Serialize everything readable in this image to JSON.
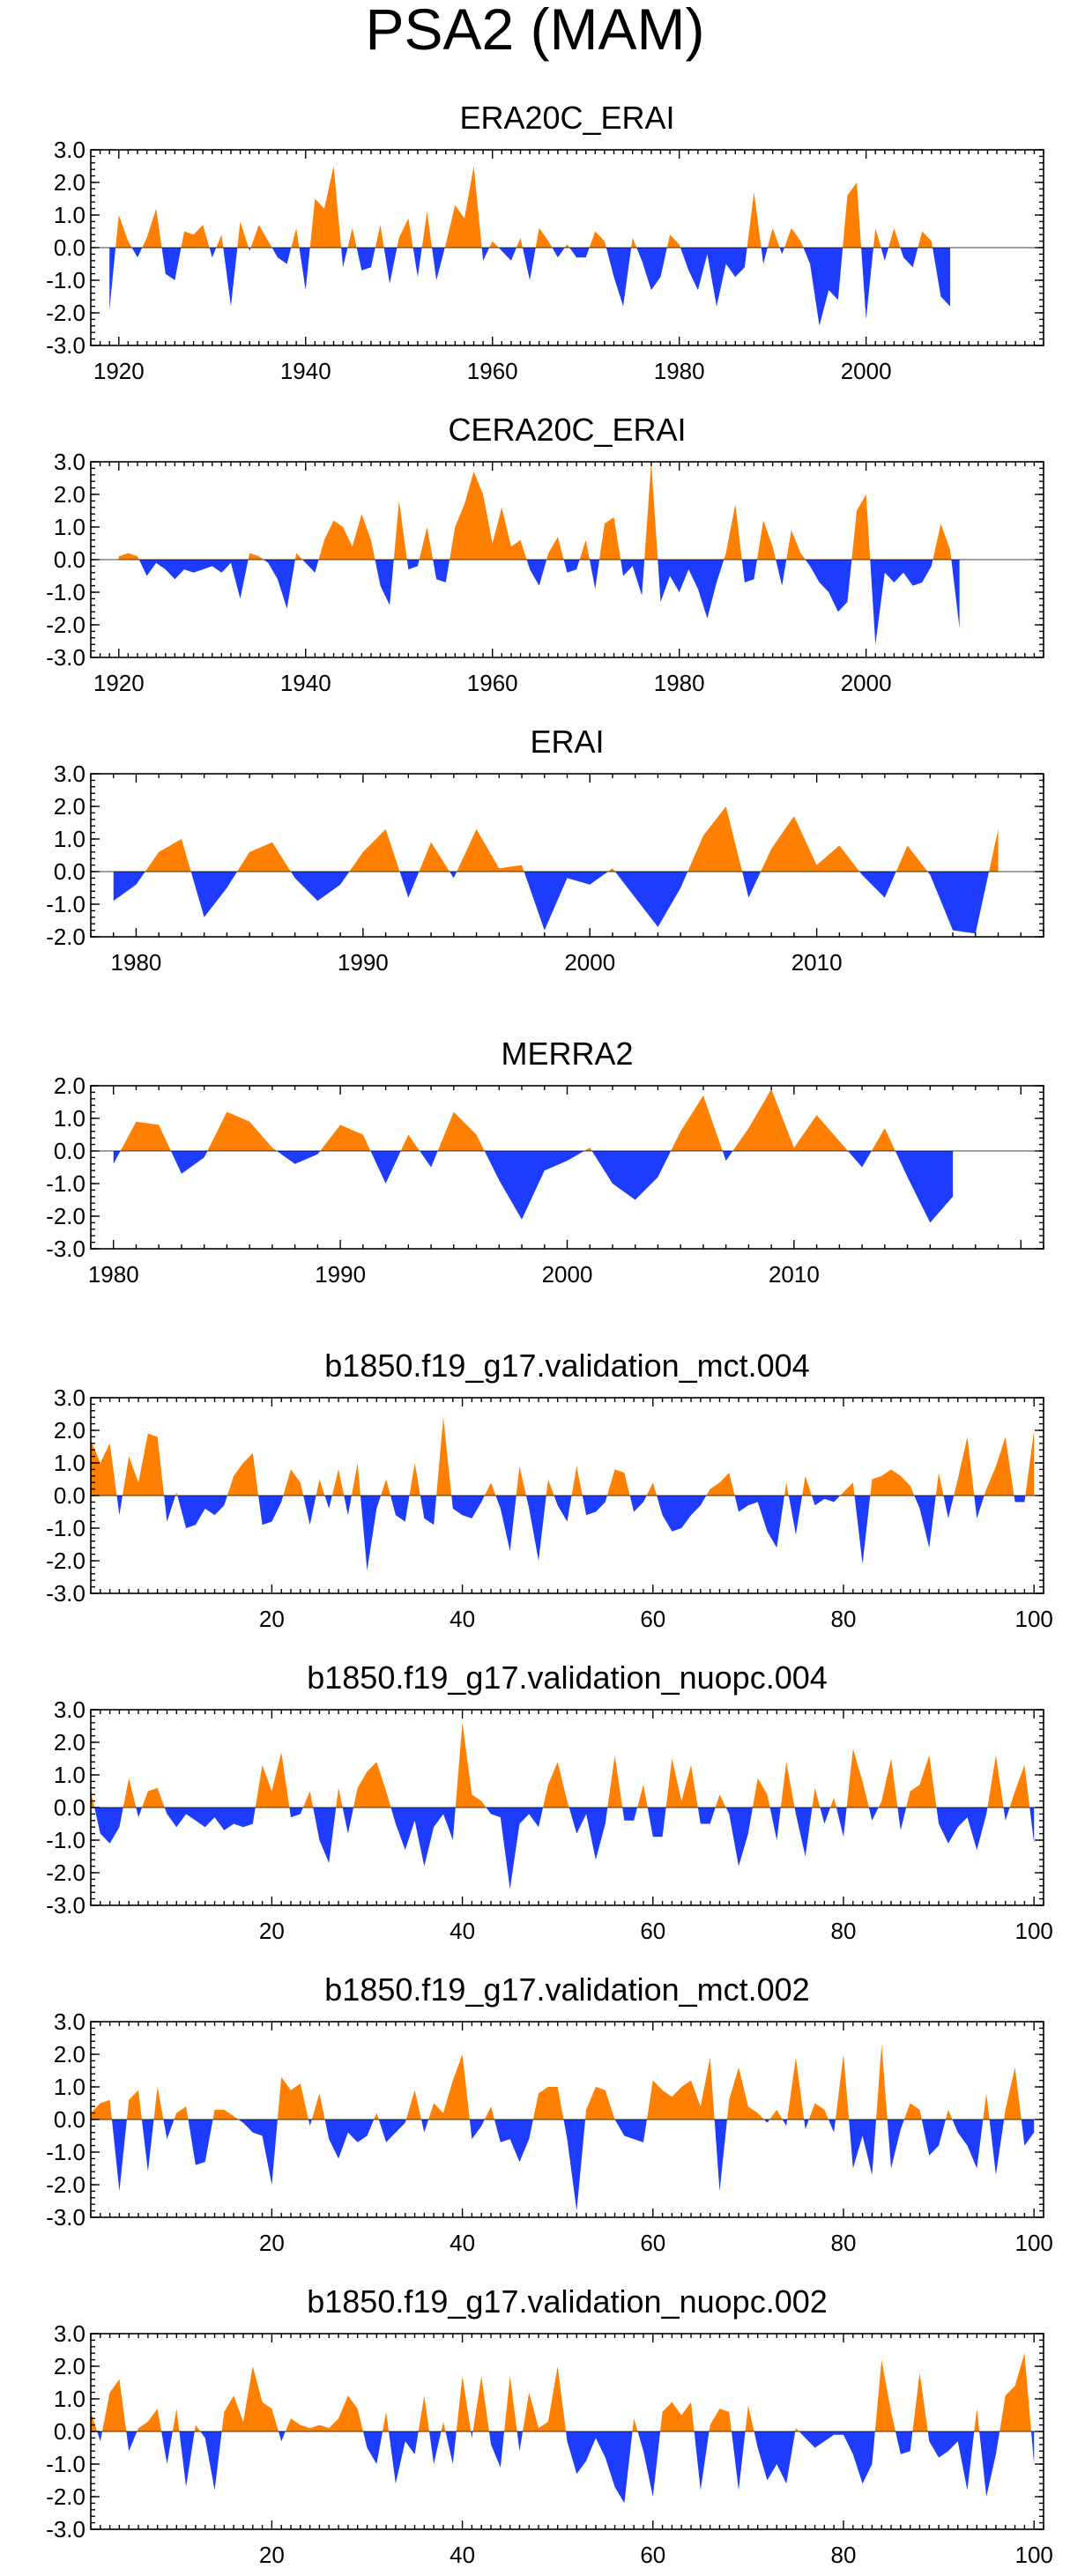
{
  "title": "PSA2 (MAM)",
  "colors": {
    "positive": "#FF8000",
    "negative": "#1E3CFF",
    "axis": "#000000"
  },
  "chart_data": [
    {
      "type": "area",
      "title": "ERA20C_ERAI",
      "x_start": 1919,
      "x_end": 2019,
      "xticks": [
        1920,
        1940,
        1960,
        1980,
        2000
      ],
      "xlim": [
        1917,
        2019
      ],
      "ylim": [
        -3.0,
        3.0
      ],
      "yticks": [
        3.0,
        2.0,
        1.0,
        0.0,
        -1.0,
        -2.0,
        -3.0
      ],
      "ytick_labels": [
        "3.0",
        "2.0",
        "1.0",
        "0.0",
        "-1.0",
        "-2.0",
        "-3.0"
      ],
      "values": [
        -1.9,
        1.0,
        0.2,
        -0.3,
        0.3,
        1.2,
        -0.8,
        -1.0,
        0.5,
        0.4,
        0.7,
        -0.3,
        0.4,
        -1.8,
        0.8,
        -0.1,
        0.7,
        0.2,
        -0.3,
        -0.5,
        0.6,
        -1.3,
        1.5,
        1.2,
        2.5,
        -0.6,
        0.6,
        -0.7,
        -0.6,
        0.7,
        -1.1,
        0.3,
        0.9,
        -0.9,
        1.1,
        -1.0,
        0.1,
        1.3,
        0.9,
        2.5,
        -0.4,
        0.2,
        -0.1,
        -0.4,
        0.3,
        -1.0,
        0.6,
        0.2,
        -0.3,
        0.1,
        -0.3,
        -0.3,
        0.5,
        0.2,
        -0.9,
        -1.8,
        0.3,
        -0.4,
        -1.3,
        -0.9,
        0.4,
        0.1,
        -0.7,
        -1.3,
        -0.2,
        -1.8,
        -0.5,
        -0.9,
        -0.6,
        1.7,
        -0.5,
        0.6,
        -0.2,
        0.6,
        0.2,
        -0.5,
        -2.4,
        -1.3,
        -1.6,
        1.6,
        2.0,
        -2.2,
        0.6,
        -0.4,
        0.6,
        -0.3,
        -0.6,
        0.5,
        0.2,
        -1.5,
        -1.8
      ]
    },
    {
      "type": "area",
      "title": "CERA20C_ERAI",
      "x_start": 1920,
      "x_end": 2018,
      "xticks": [
        1920,
        1940,
        1960,
        1980,
        2000
      ],
      "xlim": [
        1917,
        2019
      ],
      "ylim": [
        -3.0,
        3.0
      ],
      "yticks": [
        3.0,
        2.0,
        1.0,
        0.0,
        -1.0,
        -2.0,
        -3.0
      ],
      "ytick_labels": [
        "3.0",
        "2.0",
        "1.0",
        "0.0",
        "-1.0",
        "-2.0",
        "-3.0"
      ],
      "values": [
        0.1,
        0.2,
        0.1,
        -0.5,
        -0.1,
        -0.3,
        -0.6,
        -0.3,
        -0.4,
        -0.3,
        -0.2,
        -0.4,
        -0.1,
        -1.2,
        0.2,
        0.1,
        -0.1,
        -0.6,
        -1.5,
        0.2,
        -0.1,
        -0.4,
        0.6,
        1.2,
        1.0,
        0.4,
        1.4,
        0.6,
        -0.8,
        -1.4,
        1.8,
        -0.3,
        -0.2,
        1.0,
        -0.6,
        -0.7,
        1.0,
        1.7,
        2.7,
        2.0,
        0.5,
        1.6,
        0.4,
        0.6,
        -0.3,
        -0.8,
        0.2,
        0.7,
        -0.4,
        -0.3,
        0.6,
        -0.9,
        1.1,
        1.3,
        -0.5,
        -0.2,
        -1.1,
        3.0,
        -1.3,
        -0.5,
        -1.0,
        -0.3,
        -0.9,
        -1.8,
        -0.7,
        0.2,
        1.7,
        -0.7,
        -0.6,
        1.2,
        0.4,
        -0.8,
        0.9,
        0.2,
        -0.2,
        -0.7,
        -1.0,
        -1.6,
        -1.3,
        1.5,
        2.0,
        -2.6,
        -0.4,
        -0.7,
        -0.4,
        -0.8,
        -0.7,
        -0.2,
        1.1,
        0.3,
        -2.1
      ]
    },
    {
      "type": "area",
      "title": "ERAI",
      "x_start": 1979,
      "x_end": 2018,
      "xticks": [
        1980,
        1990,
        2000,
        2010
      ],
      "xlim": [
        1978,
        2020
      ],
      "ylim": [
        -2.0,
        3.0
      ],
      "yticks": [
        3.0,
        2.0,
        1.0,
        0.0,
        -1.0,
        -2.0
      ],
      "ytick_labels": [
        "3.0",
        "2.0",
        "1.0",
        "0.0",
        "-1.0",
        "-2.0"
      ],
      "values": [
        -0.9,
        -0.4,
        0.6,
        1.0,
        -1.4,
        -0.5,
        0.6,
        0.9,
        -0.2,
        -0.9,
        -0.4,
        0.6,
        1.3,
        -0.8,
        0.9,
        -0.2,
        1.3,
        0.1,
        0.2,
        -1.8,
        -0.2,
        -0.4,
        0.1,
        -0.8,
        -1.7,
        -0.5,
        1.1,
        2.0,
        -0.8,
        0.7,
        1.7,
        0.2,
        0.8,
        -0.1,
        -0.8,
        0.8,
        -0.1,
        -1.8,
        -1.9,
        1.3
      ]
    },
    {
      "type": "area",
      "title": "MERRA2",
      "x_start": 1980,
      "x_end": 2017,
      "xticks": [
        1980,
        1990,
        2000,
        2010
      ],
      "xlim": [
        1979,
        2021
      ],
      "ylim": [
        -3.0,
        2.0
      ],
      "yticks": [
        2.0,
        1.0,
        0.0,
        -1.0,
        -2.0,
        -3.0
      ],
      "ytick_labels": [
        "2.0",
        "1.0",
        "0.0",
        "-1.0",
        "-2.0",
        "-3.0"
      ],
      "values": [
        -0.4,
        0.9,
        0.8,
        -0.7,
        -0.2,
        1.2,
        0.9,
        0.1,
        -0.4,
        -0.1,
        0.8,
        0.5,
        -1.0,
        0.5,
        -0.5,
        1.2,
        0.5,
        -0.9,
        -2.1,
        -0.6,
        -0.3,
        0.1,
        -1.0,
        -1.5,
        -0.8,
        0.6,
        1.7,
        -0.3,
        0.7,
        1.9,
        0.1,
        1.1,
        0.3,
        -0.5,
        0.7,
        -0.8,
        -2.2,
        -1.4
      ]
    },
    {
      "type": "area",
      "title": "b1850.f19_g17.validation_mct.004",
      "x_start": 1,
      "x_end": 100,
      "xticks": [
        20,
        40,
        60,
        80,
        100
      ],
      "xlim": [
        1,
        101
      ],
      "ylim": [
        -3.0,
        3.0
      ],
      "yticks": [
        3.0,
        2.0,
        1.0,
        0.0,
        -1.0,
        -2.0,
        -3.0
      ],
      "ytick_labels": [
        "3.0",
        "2.0",
        "1.0",
        "0.0",
        "-1.0",
        "-2.0",
        "-3.0"
      ],
      "values": [
        1.7,
        1.0,
        1.6,
        -0.6,
        1.2,
        0.4,
        1.9,
        1.8,
        -0.8,
        0.1,
        -1.0,
        -0.9,
        -0.4,
        -0.6,
        -0.3,
        0.6,
        1.0,
        1.3,
        -0.9,
        -0.8,
        -0.2,
        0.8,
        0.4,
        -0.9,
        0.5,
        -0.4,
        0.8,
        -0.6,
        1.0,
        -2.3,
        -0.4,
        0.5,
        -0.6,
        -0.8,
        1.0,
        -0.7,
        -0.9,
        2.4,
        -0.4,
        -0.6,
        -0.7,
        -0.2,
        0.4,
        -0.4,
        -1.7,
        0.9,
        -0.4,
        -2.0,
        0.5,
        -0.3,
        -0.8,
        0.9,
        -0.6,
        -0.5,
        -0.2,
        0.8,
        0.7,
        -0.5,
        -0.2,
        0.4,
        -0.6,
        -1.1,
        -1.0,
        -0.6,
        -0.3,
        0.2,
        0.4,
        0.7,
        -0.5,
        -0.3,
        -0.2,
        -1.1,
        -1.6,
        0.4,
        -1.2,
        0.6,
        -0.3,
        -0.1,
        -0.2,
        0.1,
        0.4,
        -2.1,
        0.5,
        0.6,
        0.8,
        0.6,
        0.3,
        -0.4,
        -1.6,
        0.7,
        -0.7,
        0.5,
        1.8,
        -0.7,
        0.2,
        0.9,
        1.8,
        -0.2,
        -0.2,
        2.0
      ]
    },
    {
      "type": "area",
      "title": "b1850.f19_g17.validation_nuopc.004",
      "x_start": 1,
      "x_end": 100,
      "xticks": [
        20,
        40,
        60,
        80,
        100
      ],
      "xlim": [
        1,
        101
      ],
      "ylim": [
        -3.0,
        3.0
      ],
      "yticks": [
        3.0,
        2.0,
        1.0,
        0.0,
        -1.0,
        -2.0,
        -3.0
      ],
      "ytick_labels": [
        "3.0",
        "2.0",
        "1.0",
        "0.0",
        "-1.0",
        "-2.0",
        "-3.0"
      ],
      "values": [
        0.5,
        -0.8,
        -1.1,
        -0.6,
        0.9,
        -0.3,
        0.5,
        0.6,
        -0.2,
        -0.6,
        -0.2,
        -0.4,
        -0.6,
        -0.3,
        -0.7,
        -0.5,
        -0.6,
        -0.5,
        1.3,
        0.5,
        1.7,
        -0.3,
        -0.2,
        0.5,
        -1.0,
        -1.7,
        0.6,
        -0.8,
        0.6,
        1.1,
        1.4,
        0.5,
        -0.5,
        -1.3,
        -0.4,
        -1.8,
        -0.6,
        -0.2,
        -1.0,
        2.6,
        0.4,
        0.2,
        -0.2,
        -0.3,
        -2.5,
        -0.5,
        -0.2,
        -0.6,
        0.7,
        1.4,
        0.2,
        -0.8,
        -0.2,
        -1.6,
        -0.5,
        1.6,
        -0.4,
        -0.4,
        0.7,
        -0.9,
        -0.9,
        1.5,
        0.2,
        1.3,
        -0.5,
        -0.5,
        0.4,
        -0.2,
        -1.8,
        -0.8,
        0.9,
        0.4,
        -1.0,
        1.4,
        -0.2,
        -1.5,
        0.6,
        -0.5,
        0.3,
        -0.9,
        1.8,
        0.8,
        -0.4,
        0.2,
        1.5,
        -0.7,
        0.5,
        0.7,
        1.6,
        -0.5,
        -1.1,
        -0.6,
        -0.3,
        -1.3,
        -0.2,
        1.6,
        -0.4,
        0.5,
        1.3,
        -1.1
      ]
    },
    {
      "type": "area",
      "title": "b1850.f19_g17.validation_mct.002",
      "x_start": 1,
      "x_end": 100,
      "xticks": [
        20,
        40,
        60,
        80,
        100
      ],
      "xlim": [
        1,
        101
      ],
      "ylim": [
        -3.0,
        3.0
      ],
      "yticks": [
        3.0,
        2.0,
        1.0,
        0.0,
        -1.0,
        -2.0,
        -3.0
      ],
      "ytick_labels": [
        "3.0",
        "2.0",
        "1.0",
        "0.0",
        "-1.0",
        "-2.0",
        "-3.0"
      ],
      "values": [
        0.2,
        0.5,
        0.6,
        -2.2,
        0.6,
        0.9,
        -1.6,
        1.0,
        -0.6,
        0.2,
        0.4,
        -1.4,
        -1.3,
        0.3,
        0.3,
        0.1,
        -0.1,
        -0.4,
        -0.5,
        -2.0,
        1.3,
        0.9,
        1.1,
        -0.2,
        0.8,
        -0.6,
        -1.2,
        -0.4,
        -0.7,
        -0.5,
        0.2,
        -0.7,
        -0.4,
        -0.1,
        0.9,
        -0.4,
        0.5,
        0.2,
        1.2,
        2.0,
        -0.6,
        -0.2,
        0.4,
        -0.7,
        -0.6,
        -1.3,
        -0.6,
        0.8,
        1.0,
        1.0,
        -0.6,
        -2.8,
        0.3,
        1.0,
        0.9,
        0.0,
        -0.5,
        -0.6,
        -0.7,
        1.2,
        0.9,
        0.7,
        1.0,
        1.2,
        0.4,
        1.9,
        -2.2,
        0.6,
        1.6,
        0.4,
        0.2,
        -0.1,
        0.3,
        -0.2,
        1.9,
        -0.3,
        0.5,
        0.3,
        -0.4,
        2.0,
        -1.5,
        -0.5,
        -1.7,
        2.3,
        -1.5,
        -0.3,
        0.5,
        0.3,
        -1.1,
        -0.8,
        0.3,
        -0.4,
        -0.8,
        -1.5,
        0.8,
        -1.7,
        0.3,
        1.6,
        -0.8,
        -0.4
      ]
    },
    {
      "type": "area",
      "title": "b1850.f19_g17.validation_nuopc.002",
      "x_start": 1,
      "x_end": 100,
      "xticks": [
        20,
        40,
        60,
        80,
        100
      ],
      "xlim": [
        1,
        101
      ],
      "ylim": [
        -3.0,
        3.0
      ],
      "yticks": [
        3.0,
        2.0,
        1.0,
        0.0,
        -1.0,
        -2.0,
        -3.0
      ],
      "ytick_labels": [
        "3.0",
        "2.0",
        "1.0",
        "0.0",
        "-1.0",
        "-2.0",
        "-3.0"
      ],
      "values": [
        0.6,
        -0.3,
        1.2,
        1.6,
        -0.6,
        0.1,
        0.3,
        0.7,
        -1.0,
        0.7,
        -1.7,
        0.2,
        -0.2,
        -1.8,
        0.6,
        1.1,
        0.3,
        2.0,
        0.9,
        0.7,
        -0.3,
        0.4,
        0.2,
        0.1,
        0.2,
        0.1,
        0.4,
        1.1,
        0.7,
        -0.5,
        -1.0,
        0.6,
        -1.6,
        -0.3,
        -0.7,
        1.1,
        -1.0,
        0.3,
        -1.0,
        1.7,
        -0.2,
        1.7,
        -0.4,
        -1.1,
        1.7,
        -0.6,
        1.2,
        0.1,
        0.3,
        2.0,
        -0.3,
        -1.3,
        -0.9,
        -0.2,
        -0.8,
        -1.7,
        -2.2,
        0.4,
        -0.6,
        -2.0,
        0.6,
        0.9,
        0.5,
        0.9,
        -1.8,
        0.2,
        0.7,
        0.6,
        -1.8,
        0.8,
        -0.5,
        -1.5,
        -1.0,
        -1.6,
        0.1,
        -0.2,
        -0.5,
        -0.3,
        -0.1,
        -0.1,
        -0.7,
        -1.6,
        -1.0,
        2.2,
        0.6,
        -0.7,
        -0.6,
        1.8,
        -0.3,
        -0.8,
        -0.6,
        -0.3,
        -1.8,
        0.7,
        -2.0,
        -0.7,
        1.1,
        1.4,
        2.4,
        -1.0
      ]
    }
  ]
}
